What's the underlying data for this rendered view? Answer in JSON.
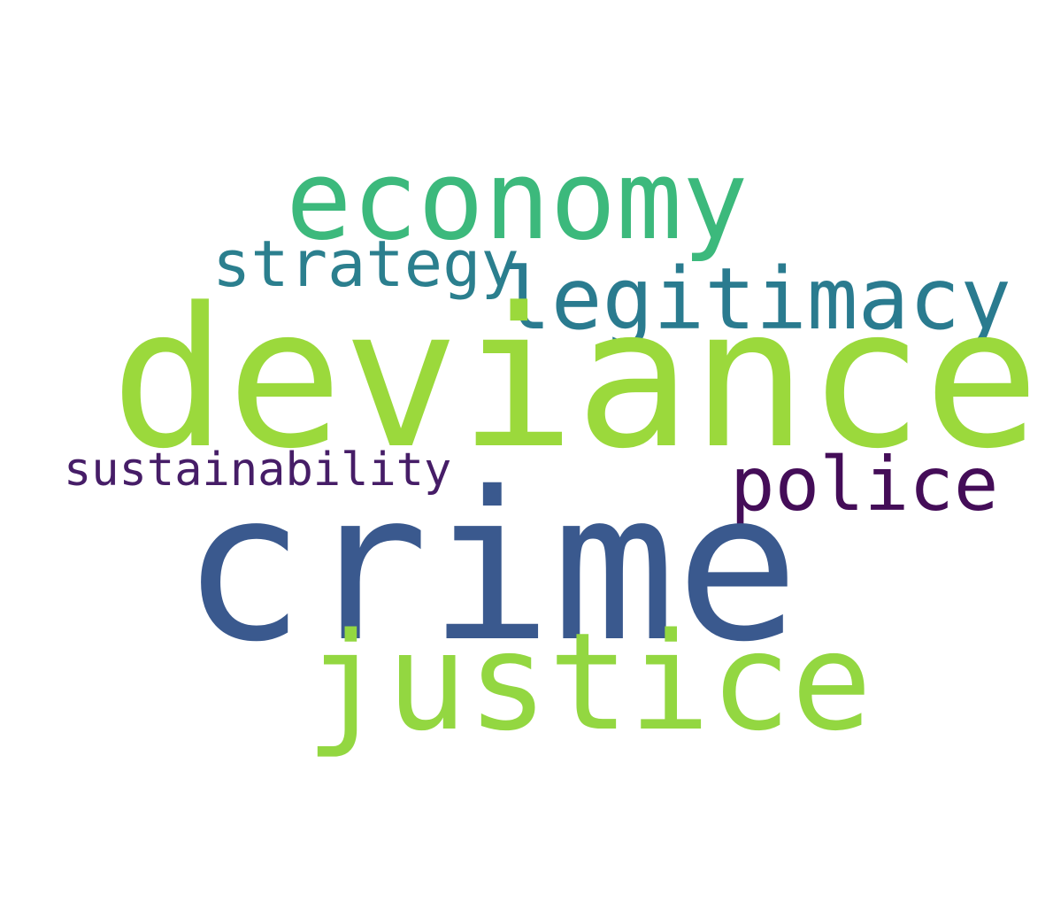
{
  "words": [
    {
      "text": "economy",
      "color": "#3cb97c"
    },
    {
      "text": "strategy",
      "color": "#2b7f8e"
    },
    {
      "text": "legitimacy",
      "color": "#2a7b8f"
    },
    {
      "text": "deviance",
      "color": "#9bd93c"
    },
    {
      "text": "sustainability",
      "color": "#461d67"
    },
    {
      "text": "police",
      "color": "#440d58"
    },
    {
      "text": "crime",
      "color": "#3a598e"
    },
    {
      "text": "justice",
      "color": "#93d741"
    }
  ]
}
